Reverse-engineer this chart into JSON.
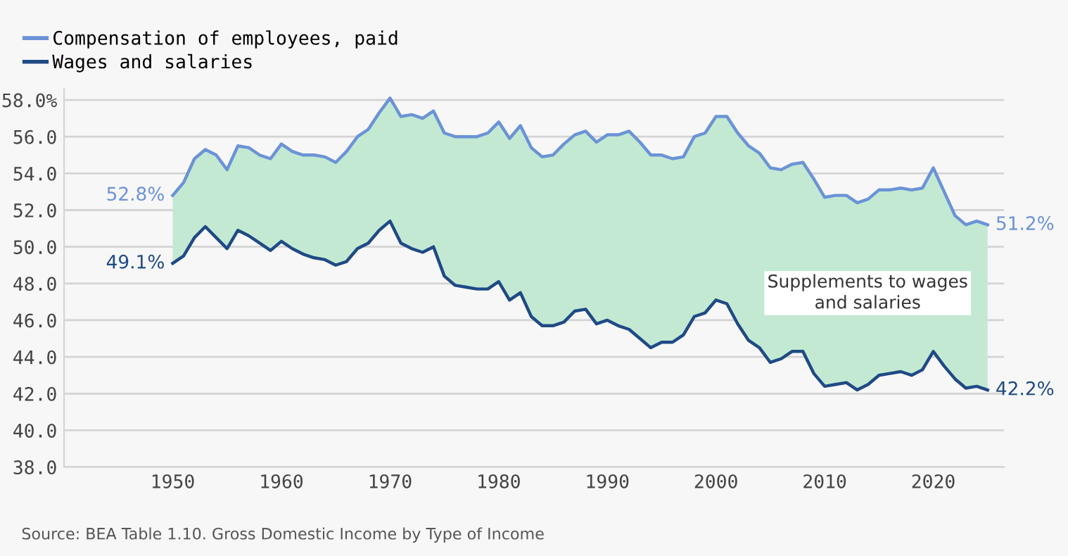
{
  "chart_data": {
    "type": "line",
    "x": [
      1950,
      1951,
      1952,
      1953,
      1954,
      1955,
      1956,
      1957,
      1958,
      1959,
      1960,
      1961,
      1962,
      1963,
      1964,
      1965,
      1966,
      1967,
      1968,
      1969,
      1970,
      1971,
      1972,
      1973,
      1974,
      1975,
      1976,
      1977,
      1978,
      1979,
      1980,
      1981,
      1982,
      1983,
      1984,
      1985,
      1986,
      1987,
      1988,
      1989,
      1990,
      1991,
      1992,
      1993,
      1994,
      1995,
      1996,
      1997,
      1998,
      1999,
      2000,
      2001,
      2002,
      2003,
      2004,
      2005,
      2006,
      2007,
      2008,
      2009,
      2010,
      2011,
      2012,
      2013,
      2014,
      2015,
      2016,
      2017,
      2018,
      2019,
      2020,
      2021,
      2022,
      2023,
      2024,
      2025
    ],
    "series": [
      {
        "name": "Compensation of employees, paid",
        "type": "area",
        "color": "#6b93d6",
        "values": [
          52.8,
          53.5,
          54.8,
          55.3,
          55.0,
          54.2,
          55.5,
          55.4,
          55.0,
          54.8,
          55.6,
          55.2,
          55.0,
          55.0,
          54.9,
          54.6,
          55.2,
          56.0,
          56.4,
          57.3,
          58.1,
          57.1,
          57.2,
          57.0,
          57.4,
          56.2,
          56.0,
          56.0,
          56.0,
          56.2,
          56.8,
          55.9,
          56.6,
          55.4,
          54.9,
          55.0,
          55.6,
          56.1,
          56.3,
          55.7,
          56.1,
          56.1,
          56.3,
          55.7,
          55.0,
          55.0,
          54.8,
          54.9,
          56.0,
          56.2,
          57.1,
          57.1,
          56.2,
          55.5,
          55.1,
          54.3,
          54.2,
          54.5,
          54.6,
          53.7,
          52.7,
          52.8,
          52.8,
          52.4,
          52.6,
          53.1,
          53.1,
          53.2,
          53.1,
          53.2,
          54.3,
          53.0,
          51.7,
          51.2,
          51.4,
          51.2
        ],
        "value_labels": [
          "52.8%",
          null,
          null,
          null,
          null,
          null,
          null,
          null,
          null,
          null,
          null,
          null,
          null,
          null,
          null,
          null,
          null,
          null,
          null,
          null,
          null,
          null,
          null,
          null,
          null,
          null,
          null,
          null,
          null,
          null,
          null,
          null,
          null,
          null,
          null,
          null,
          null,
          null,
          null,
          null,
          null,
          null,
          null,
          null,
          null,
          null,
          null,
          null,
          null,
          null,
          null,
          null,
          null,
          null,
          null,
          null,
          null,
          null,
          null,
          null,
          null,
          null,
          null,
          null,
          null,
          null,
          null,
          null,
          null,
          null,
          null,
          null,
          null,
          null,
          null,
          "51.2%"
        ]
      },
      {
        "name": "Wages and salaries",
        "color": "#1f4a85",
        "values": [
          49.1,
          49.5,
          50.5,
          51.1,
          50.5,
          49.9,
          50.9,
          50.6,
          50.2,
          49.8,
          50.3,
          49.9,
          49.6,
          49.4,
          49.3,
          49.0,
          49.2,
          49.9,
          50.2,
          50.9,
          51.4,
          50.2,
          49.9,
          49.7,
          50.0,
          48.4,
          47.9,
          47.8,
          47.7,
          47.7,
          48.1,
          47.1,
          47.5,
          46.2,
          45.7,
          45.7,
          45.9,
          46.5,
          46.6,
          45.8,
          46.0,
          45.7,
          45.5,
          45.0,
          44.5,
          44.8,
          44.8,
          45.2,
          46.2,
          46.4,
          47.1,
          46.9,
          45.8,
          44.9,
          44.5,
          43.7,
          43.9,
          44.3,
          44.3,
          43.1,
          42.4,
          42.5,
          42.6,
          42.2,
          42.5,
          43.0,
          43.1,
          43.2,
          43.0,
          43.3,
          44.3,
          43.5,
          42.8,
          42.3,
          42.4,
          42.2
        ],
        "value_labels": [
          "49.1%",
          null,
          null,
          null,
          null,
          null,
          null,
          null,
          null,
          null,
          null,
          null,
          null,
          null,
          null,
          null,
          null,
          null,
          null,
          null,
          null,
          null,
          null,
          null,
          null,
          null,
          null,
          null,
          null,
          null,
          null,
          null,
          null,
          null,
          null,
          null,
          null,
          null,
          null,
          null,
          null,
          null,
          null,
          null,
          null,
          null,
          null,
          null,
          null,
          null,
          null,
          null,
          null,
          null,
          null,
          null,
          null,
          null,
          null,
          null,
          null,
          null,
          null,
          null,
          null,
          null,
          null,
          null,
          null,
          null,
          null,
          null,
          null,
          null,
          null,
          "42.2%"
        ]
      }
    ],
    "xlim": [
      1940,
      2026.5
    ],
    "xticks": [
      1950,
      1960,
      1970,
      1980,
      1990,
      2000,
      2010,
      2020
    ],
    "ylim": [
      38,
      58.6
    ],
    "yticks": [
      {
        "value": 38,
        "label": "38.0"
      },
      {
        "value": 40,
        "label": "40.0"
      },
      {
        "value": 42,
        "label": "42.0"
      },
      {
        "value": 44,
        "label": "44.0"
      },
      {
        "value": 46,
        "label": "46.0"
      },
      {
        "value": 48,
        "label": "48.0"
      },
      {
        "value": 50,
        "label": "50.0"
      },
      {
        "value": 52,
        "label": "52.0"
      },
      {
        "value": 54,
        "label": "54.0"
      },
      {
        "value": 56,
        "label": "56.0"
      },
      {
        "value": 58,
        "label": "58.0%"
      }
    ],
    "grid": "y",
    "legend": "top left",
    "marker": "none",
    "line_style": "solid",
    "annotations": [
      "Supplements to wages and salaries",
      "Source: BEA Table 1.10. Gross Domestic Income by Type of Income"
    ]
  }
}
